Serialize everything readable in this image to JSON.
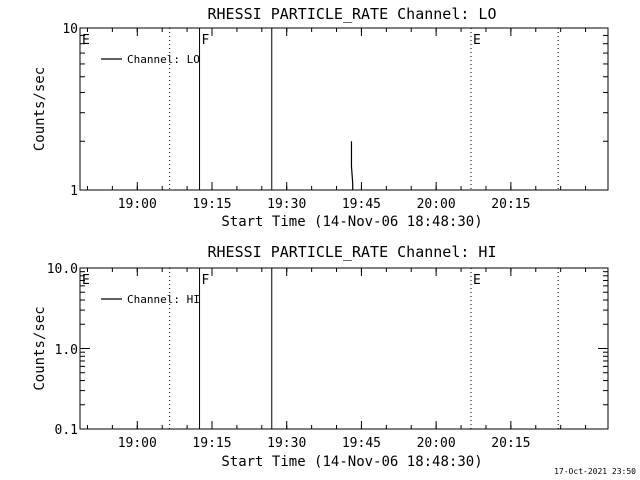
{
  "timestamp": "17-Oct-2021 23:50",
  "chart_data": [
    {
      "type": "line",
      "title": "RHESSI PARTICLE_RATE Channel: LO",
      "xlabel": "Start Time (14-Nov-06 18:48:30)",
      "ylabel": "Counts/sec",
      "yscale": "log",
      "ylim": [
        1,
        10
      ],
      "ytick_labels": [
        "1",
        "10"
      ],
      "xlim_minutes_after_start": [
        0,
        106
      ],
      "xtick_labels": [
        "19:00",
        "19:15",
        "19:30",
        "19:45",
        "20:00",
        "20:15"
      ],
      "legend": {
        "label": "Channel: LO",
        "placement": "top-left"
      },
      "markers": [
        {
          "label": "E",
          "time": "18:48:30",
          "style": "dotted"
        },
        {
          "label": "",
          "time": "19:06:30",
          "style": "dotted"
        },
        {
          "label": "F",
          "time": "19:12:30",
          "style": "solid"
        },
        {
          "label": "",
          "time": "19:27:00",
          "style": "solid"
        },
        {
          "label": "E",
          "time": "20:07:00",
          "style": "dotted"
        },
        {
          "label": "",
          "time": "20:24:30",
          "style": "dotted"
        }
      ],
      "series": [
        {
          "name": "Channel: LO",
          "x": [
            "19:43:00",
            "19:43:00",
            "19:43:15",
            "19:43:15"
          ],
          "values": [
            2.0,
            1.4,
            1.1,
            1.0
          ]
        }
      ]
    },
    {
      "type": "line",
      "title": "RHESSI PARTICLE_RATE Channel: HI",
      "xlabel": "Start Time (14-Nov-06 18:48:30)",
      "ylabel": "Counts/sec",
      "yscale": "log",
      "ylim": [
        0.1,
        10
      ],
      "ytick_labels": [
        "0.1",
        "1.0",
        "10.0"
      ],
      "xlim_minutes_after_start": [
        0,
        106
      ],
      "xtick_labels": [
        "19:00",
        "19:15",
        "19:30",
        "19:45",
        "20:00",
        "20:15"
      ],
      "legend": {
        "label": "Channel: HI",
        "placement": "top-left"
      },
      "markers": [
        {
          "label": "E",
          "time": "18:48:30",
          "style": "dotted"
        },
        {
          "label": "",
          "time": "19:06:30",
          "style": "dotted"
        },
        {
          "label": "F",
          "time": "19:12:30",
          "style": "solid"
        },
        {
          "label": "",
          "time": "19:27:00",
          "style": "solid"
        },
        {
          "label": "E",
          "time": "20:07:00",
          "style": "dotted"
        },
        {
          "label": "",
          "time": "20:24:30",
          "style": "dotted"
        }
      ],
      "series": [
        {
          "name": "Channel: HI",
          "x": [],
          "values": []
        }
      ]
    }
  ]
}
